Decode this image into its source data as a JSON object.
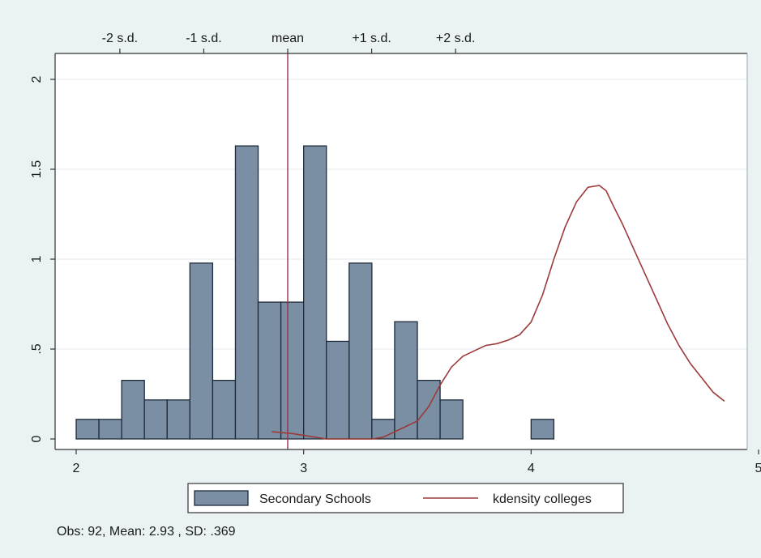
{
  "chart_data": {
    "type": "histogram",
    "bin_width": 0.1,
    "bins": [
      {
        "x0": 2.0,
        "x1": 2.1,
        "density": 0.109
      },
      {
        "x0": 2.1,
        "x1": 2.2,
        "density": 0.109
      },
      {
        "x0": 2.2,
        "x1": 2.3,
        "density": 0.326
      },
      {
        "x0": 2.3,
        "x1": 2.4,
        "density": 0.217
      },
      {
        "x0": 2.4,
        "x1": 2.5,
        "density": 0.217
      },
      {
        "x0": 2.5,
        "x1": 2.6,
        "density": 0.978
      },
      {
        "x0": 2.6,
        "x1": 2.7,
        "density": 0.326
      },
      {
        "x0": 2.7,
        "x1": 2.8,
        "density": 1.63
      },
      {
        "x0": 2.8,
        "x1": 2.9,
        "density": 0.761
      },
      {
        "x0": 2.9,
        "x1": 3.0,
        "density": 0.761
      },
      {
        "x0": 3.0,
        "x1": 3.1,
        "density": 1.63
      },
      {
        "x0": 3.1,
        "x1": 3.2,
        "density": 0.543
      },
      {
        "x0": 3.2,
        "x1": 3.3,
        "density": 0.978
      },
      {
        "x0": 3.3,
        "x1": 3.4,
        "density": 0.109
      },
      {
        "x0": 3.4,
        "x1": 3.5,
        "density": 0.652
      },
      {
        "x0": 3.5,
        "x1": 3.6,
        "density": 0.326
      },
      {
        "x0": 3.6,
        "x1": 3.7,
        "density": 0.217
      },
      {
        "x0": 4.0,
        "x1": 4.1,
        "density": 0.109
      }
    ],
    "kdensity": {
      "name": "kdensity colleges",
      "x": [
        2.86,
        2.95,
        3.0,
        3.05,
        3.1,
        3.2,
        3.3,
        3.35,
        3.4,
        3.45,
        3.5,
        3.55,
        3.6,
        3.65,
        3.7,
        3.75,
        3.8,
        3.85,
        3.9,
        3.95,
        4.0,
        4.05,
        4.1,
        4.15,
        4.2,
        4.25,
        4.3,
        4.33,
        4.36,
        4.4,
        4.45,
        4.5,
        4.55,
        4.6,
        4.65,
        4.7,
        4.75,
        4.8,
        4.85
      ],
      "y": [
        0.04,
        0.03,
        0.02,
        0.01,
        0.0,
        0.0,
        0.0,
        0.01,
        0.04,
        0.07,
        0.1,
        0.18,
        0.3,
        0.4,
        0.46,
        0.49,
        0.52,
        0.53,
        0.55,
        0.58,
        0.65,
        0.8,
        1.0,
        1.18,
        1.32,
        1.4,
        1.41,
        1.38,
        1.3,
        1.2,
        1.06,
        0.92,
        0.78,
        0.64,
        0.52,
        0.42,
        0.34,
        0.26,
        0.21
      ]
    },
    "mean": 2.93,
    "sd": 0.369,
    "x_ticks": [
      "2",
      "3",
      "4",
      "5"
    ],
    "y_ticks": [
      "0",
      ".5",
      "1",
      "1.5",
      "2"
    ],
    "top_ticks": [
      "-2 s.d.",
      "-1 s.d.",
      "mean",
      "+1 s.d.",
      "+2 s.d."
    ],
    "xlim": [
      2,
      5
    ],
    "ylim": [
      0,
      2
    ],
    "grid": true,
    "legend": {
      "position": "bottom",
      "entries": [
        "Secondary Schools",
        "kdensity colleges"
      ]
    },
    "note": "Obs: 92,  Mean:  2.93 , SD:  .369",
    "colors": {
      "bar_fill": "#7a8ea4",
      "bar_stroke": "#1d2b3a",
      "line": "#9c3a3a",
      "mean_line": "#9c2f4a",
      "outer_bg": "#eaf2f3",
      "plot_bg": "#ffffff",
      "grid": "#e6eef0"
    }
  }
}
